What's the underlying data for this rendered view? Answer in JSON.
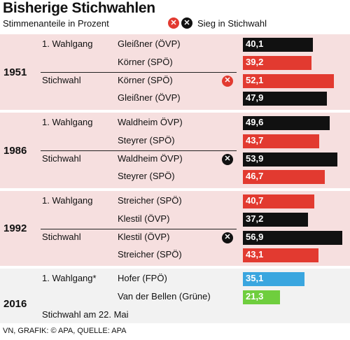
{
  "chart_data": {
    "type": "bar",
    "title": "Bisherige Stichwahlen",
    "subtitle": "Stimmenanteile in Prozent",
    "legend": {
      "win_label": "Sieg in Stichwahl",
      "icon_glyph": "✕",
      "icon_colors": [
        "#e23a30",
        "#111111"
      ]
    },
    "xlim": [
      0,
      60
    ],
    "colors": {
      "ÖVP": "#111111",
      "SPÖ": "#e23a30",
      "FPÖ": "#3aa6df",
      "Grüne": "#6fce3e"
    },
    "block_backgrounds": {
      "pink": "#f6dfdf",
      "grey": "#f2f2f2"
    },
    "elections": [
      {
        "year": "1951",
        "rows": [
          {
            "round": "1. Wahlgang",
            "candidate": "Gleißner (ÖVP)",
            "party": "ÖVP",
            "value": 40.1,
            "label": "40,1"
          },
          {
            "round": "",
            "candidate": "Körner (SPÖ)",
            "party": "SPÖ",
            "value": 39.2,
            "label": "39,2"
          },
          {
            "round": "Stichwahl",
            "candidate": "Körner (SPÖ)",
            "party": "SPÖ",
            "value": 52.1,
            "label": "52,1",
            "winner": true
          },
          {
            "round": "",
            "candidate": "Gleißner (ÖVP)",
            "party": "ÖVP",
            "value": 47.9,
            "label": "47,9"
          }
        ]
      },
      {
        "year": "1986",
        "rows": [
          {
            "round": "1. Wahlgang",
            "candidate": "Waldheim ÖVP)",
            "party": "ÖVP",
            "value": 49.6,
            "label": "49,6"
          },
          {
            "round": "",
            "candidate": "Steyrer (SPÖ)",
            "party": "SPÖ",
            "value": 43.7,
            "label": "43,7"
          },
          {
            "round": "Stichwahl",
            "candidate": "Waldheim ÖVP)",
            "party": "ÖVP",
            "value": 53.9,
            "label": "53,9",
            "winner": true
          },
          {
            "round": "",
            "candidate": "Steyrer (SPÖ)",
            "party": "SPÖ",
            "value": 46.7,
            "label": "46,7"
          }
        ]
      },
      {
        "year": "1992",
        "rows": [
          {
            "round": "1. Wahlgang",
            "candidate": "Streicher (SPÖ)",
            "party": "SPÖ",
            "value": 40.7,
            "label": "40,7"
          },
          {
            "round": "",
            "candidate": "Klestil (ÖVP)",
            "party": "ÖVP",
            "value": 37.2,
            "label": "37,2"
          },
          {
            "round": "Stichwahl",
            "candidate": "Klestil (ÖVP)",
            "party": "ÖVP",
            "value": 56.9,
            "label": "56,9",
            "winner": true
          },
          {
            "round": "",
            "candidate": "Streicher (SPÖ)",
            "party": "SPÖ",
            "value": 43.1,
            "label": "43,1"
          }
        ]
      },
      {
        "year": "2016",
        "rows": [
          {
            "round": "1. Wahlgang*",
            "candidate": "Hofer (FPÖ)",
            "party": "FPÖ",
            "value": 35.1,
            "label": "35,1"
          },
          {
            "round": "",
            "candidate": "Van der Bellen (Grüne)",
            "party": "Grüne",
            "value": 21.3,
            "label": "21,3"
          },
          {
            "round": "Stichwahl am 22. Mai",
            "candidate": "",
            "party": "",
            "value": null,
            "label": ""
          }
        ]
      }
    ],
    "source": "VN, GRAFIK: © APA, QUELLE: APA"
  }
}
